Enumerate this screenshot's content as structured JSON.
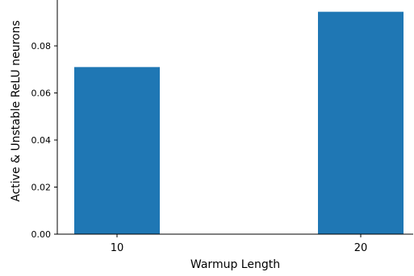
{
  "chart_data": {
    "type": "bar",
    "title": "",
    "xlabel": "Warmup Length",
    "ylabel": "Active & Unstable ReLU neurons",
    "categories": [
      "10",
      "20"
    ],
    "values": [
      0.071,
      0.0945
    ],
    "ylim": [
      0.0,
      0.0995
    ],
    "yticks": [
      0.0,
      0.02,
      0.04,
      0.06,
      0.08
    ],
    "ytick_labels": [
      "0.00",
      "0.02",
      "0.04",
      "0.06",
      "0.08"
    ],
    "bar_color": "#1f77b4",
    "grid": false,
    "legend": "none"
  }
}
